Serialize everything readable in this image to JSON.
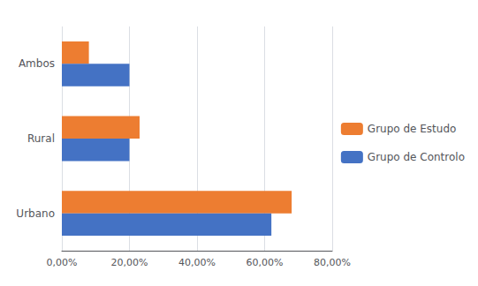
{
  "chart_data": {
    "type": "bar",
    "orientation": "horizontal",
    "categories": [
      "Urbano",
      "Rural",
      "Ambos"
    ],
    "series": [
      {
        "name": "Grupo de Estudo",
        "color": "#ED7D31",
        "values": [
          0.68,
          0.23,
          0.08
        ]
      },
      {
        "name": "Grupo de Controlo",
        "color": "#4472C4",
        "values": [
          0.62,
          0.2,
          0.2
        ]
      }
    ],
    "xlim": [
      0,
      0.8
    ],
    "xticks": [
      {
        "value": 0.0,
        "label": "0,00%"
      },
      {
        "value": 0.2,
        "label": "20,00%"
      },
      {
        "value": 0.4,
        "label": "40,00%"
      },
      {
        "value": 0.6,
        "label": "60,00%"
      },
      {
        "value": 0.8,
        "label": "80,00%"
      }
    ],
    "grid": true,
    "legend": "right"
  }
}
